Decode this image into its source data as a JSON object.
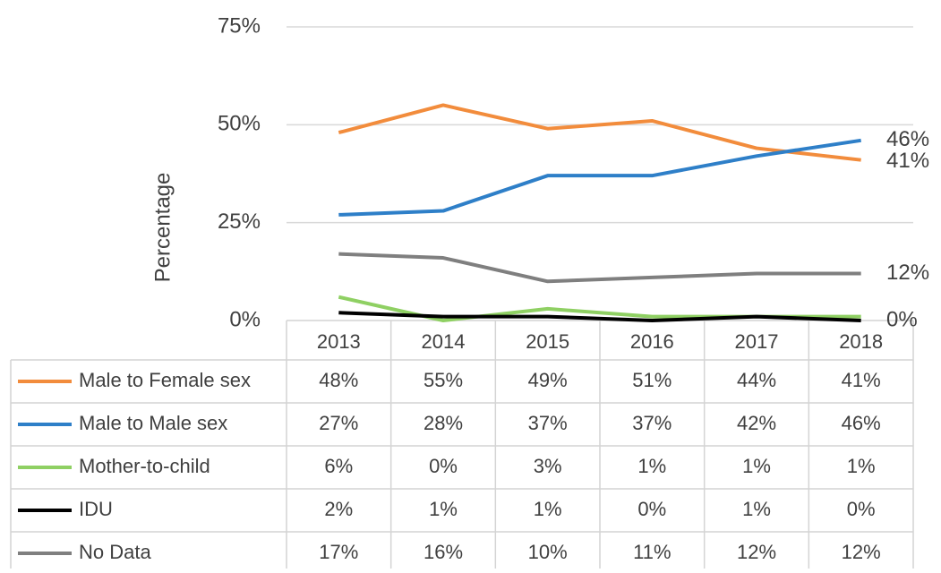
{
  "chart_data": {
    "type": "line",
    "y_axis_label": "Percentage",
    "categories": [
      "2013",
      "2014",
      "2015",
      "2016",
      "2017",
      "2018"
    ],
    "ylim": [
      0,
      75
    ],
    "yticks": [
      {
        "value": 0,
        "label": "0%"
      },
      {
        "value": 25,
        "label": "25%"
      },
      {
        "value": 50,
        "label": "50%"
      },
      {
        "value": 75,
        "label": "75%"
      }
    ],
    "grid": true,
    "data_table": true,
    "series": [
      {
        "name": "Male to Female sex",
        "color": "#f28c3c",
        "values": [
          48,
          55,
          49,
          51,
          44,
          41
        ],
        "value_labels": [
          "48%",
          "55%",
          "49%",
          "51%",
          "44%",
          "41%"
        ],
        "end_label": true
      },
      {
        "name": "Male to Male sex",
        "color": "#2e7fc8",
        "values": [
          27,
          28,
          37,
          37,
          42,
          46
        ],
        "value_labels": [
          "27%",
          "28%",
          "37%",
          "37%",
          "42%",
          "46%"
        ],
        "end_label": true
      },
      {
        "name": "Mother-to-child",
        "color": "#8fd063",
        "values": [
          6,
          0,
          3,
          1,
          1,
          1
        ],
        "value_labels": [
          "6%",
          "0%",
          "3%",
          "1%",
          "1%",
          "1%"
        ],
        "end_label": false
      },
      {
        "name": "IDU",
        "color": "#000000",
        "values": [
          2,
          1,
          1,
          0,
          1,
          0
        ],
        "value_labels": [
          "2%",
          "1%",
          "1%",
          "0%",
          "1%",
          "0%"
        ],
        "end_label": true
      },
      {
        "name": "No Data",
        "color": "#7f7f7f",
        "values": [
          17,
          16,
          10,
          11,
          12,
          12
        ],
        "value_labels": [
          "17%",
          "16%",
          "10%",
          "11%",
          "12%",
          "12%"
        ],
        "end_label": true
      }
    ]
  }
}
